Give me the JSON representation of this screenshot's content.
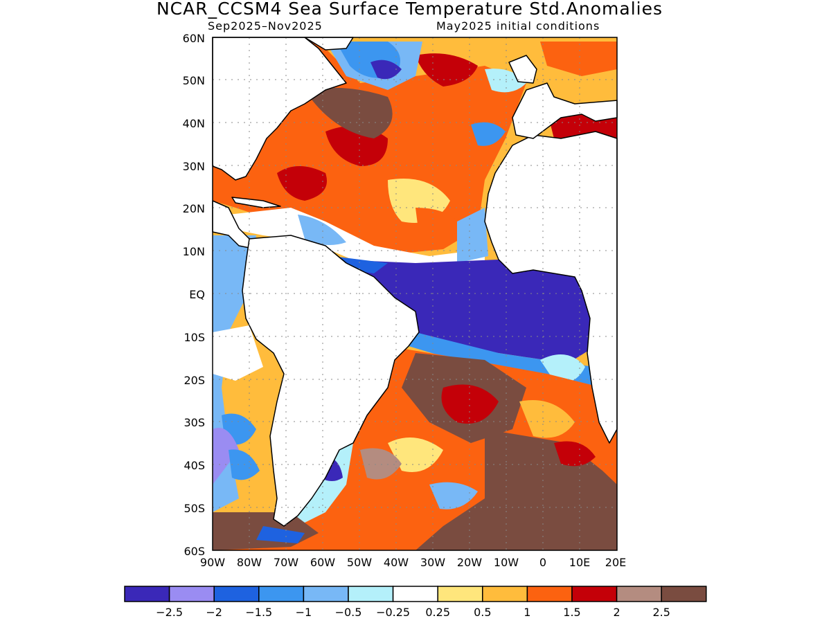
{
  "title": "NCAR_CCSM4 Sea Surface Temperature Std.Anomalies",
  "subtitle_left": "Sep2025–Nov2025",
  "subtitle_right": "May2025 initial conditions",
  "map": {
    "lat_ticks": [
      "60N",
      "50N",
      "40N",
      "30N",
      "20N",
      "10N",
      "EQ",
      "10S",
      "20S",
      "30S",
      "40S",
      "50S",
      "60S"
    ],
    "lon_ticks": [
      "90W",
      "80W",
      "70W",
      "60W",
      "50W",
      "40W",
      "30W",
      "20W",
      "10W",
      "0",
      "10E",
      "20E"
    ],
    "extent": {
      "lon": [
        -90,
        20
      ],
      "lat": [
        -60,
        60
      ]
    }
  },
  "colorbar": {
    "colors": [
      "#3a28b8",
      "#9a8cf2",
      "#1e62e0",
      "#3c96f0",
      "#78b8f6",
      "#b4f0fa",
      "#ffffff",
      "#ffe67c",
      "#ffbc3c",
      "#fc6210",
      "#c40008",
      "#b48c80",
      "#7a4c40"
    ],
    "labels": [
      "-2.5",
      "-2",
      "-1.5",
      "-1",
      "-0.5",
      "-0.25",
      "0.25",
      "0.5",
      "1",
      "1.5",
      "2",
      "2.5"
    ]
  }
}
